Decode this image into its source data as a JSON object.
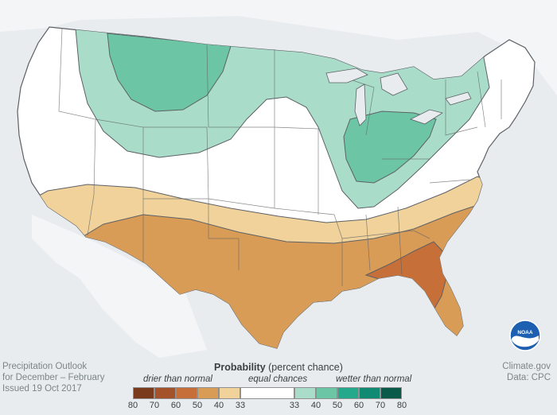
{
  "caption": {
    "line1": "Precipitation Outlook",
    "line2": "for December – February",
    "line3": "Issued 19 Oct 2017"
  },
  "credit": {
    "source": "Climate.gov",
    "data": "Data: CPC"
  },
  "logo": {
    "text": "NOAA",
    "icon": "noaa-logo-icon"
  },
  "legend": {
    "title_bold": "Probability",
    "title_rest": "(percent chance)",
    "drier": "drier than normal",
    "equal": "equal chances",
    "wetter": "wetter than normal",
    "dry_colors": [
      "#7a3a1c",
      "#a4522a",
      "#c66f38",
      "#d99c57",
      "#f0d29a"
    ],
    "wet_colors": [
      "#a9ddc9",
      "#6cc6a6",
      "#25a98d",
      "#118a74",
      "#0a5a4a"
    ],
    "ticks": [
      "80",
      "70",
      "60",
      "50",
      "40",
      "33",
      "33",
      "40",
      "50",
      "60",
      "70",
      "80"
    ]
  },
  "map": {
    "background": "#e9ecef",
    "land": "#ffffff",
    "wet_33_40": "#a9ddc9",
    "wet_40_50": "#6cc6a6",
    "dry_33_40": "#f0d29a",
    "dry_40_50": "#d99c57",
    "dry_50_60": "#c66f38"
  }
}
